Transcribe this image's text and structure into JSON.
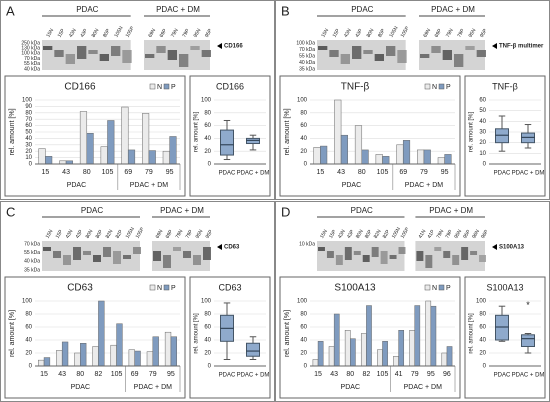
{
  "panels": [
    {
      "letter": "A",
      "groups": [
        "PDAC",
        "PDAC + DM"
      ],
      "lanes": [
        [
          "15N",
          "15P",
          "43N",
          "43P",
          "80N",
          "80P",
          "105N",
          "105P"
        ],
        [
          "69N",
          "69P",
          "79N",
          "79P",
          "95N",
          "95P"
        ]
      ],
      "markers": [
        "250 kDa",
        "130 kDa",
        "100 kDa",
        "70 kDa",
        "55 kDa",
        "40 kDa"
      ],
      "protein": "CD166"
    },
    {
      "letter": "B",
      "groups": [
        "PDAC",
        "PDAC + DM"
      ],
      "lanes": [
        [
          "15N",
          "15P",
          "43N",
          "43P",
          "80N",
          "80P",
          "105N",
          "105P"
        ],
        [
          "69N",
          "69P",
          "79N",
          "79P",
          "95N",
          "95P"
        ]
      ],
      "markers": [
        "100 kDa",
        "70 kDa",
        "55 kDa",
        "40 kDa",
        "35 kDa"
      ],
      "protein": "TNF-β multimer"
    },
    {
      "letter": "C",
      "groups": [
        "PDAC",
        "PDAC + DM"
      ],
      "lanes": [
        [
          "15N",
          "15P",
          "43N",
          "43P",
          "80N",
          "80P",
          "82N",
          "82P",
          "105N",
          "105P"
        ],
        [
          "69N",
          "69P",
          "79N",
          "79P",
          "95N",
          "95P"
        ]
      ],
      "markers": [
        "70 kDa",
        "55 kDa",
        "40 kDa",
        "35 kDa"
      ],
      "protein": "CD63"
    },
    {
      "letter": "D",
      "groups": [
        "PDAC",
        "PDAC + DM"
      ],
      "lanes": [
        [
          "15N",
          "15P",
          "43N",
          "43P",
          "80N",
          "80P",
          "82N",
          "82P",
          "105N",
          "105P"
        ],
        [
          "41N",
          "41P",
          "79N",
          "79P",
          "95N",
          "95P",
          "96N",
          "96P"
        ]
      ],
      "markers": [
        "10 kDa"
      ],
      "protein": "S100A13"
    }
  ],
  "chart_data": [
    {
      "type": "bar",
      "title": "CD166",
      "ylabel": "rel. amount [%]",
      "groups": [
        {
          "label": "PDAC",
          "categories": [
            "15",
            "43",
            "80",
            "105"
          ]
        },
        {
          "label": "PDAC + DM",
          "categories": [
            "69",
            "79",
            "95"
          ]
        }
      ],
      "series": [
        {
          "name": "N",
          "color": "#ebebeb",
          "values": [
            24,
            5,
            82,
            27,
            89,
            79,
            20
          ]
        },
        {
          "name": "P",
          "color": "#7f9bbf",
          "values": [
            12,
            5,
            48,
            68,
            22,
            21,
            43
          ]
        }
      ],
      "ylim": [
        0,
        100
      ],
      "yticks": [
        0,
        10,
        20,
        30,
        40,
        50,
        60,
        70,
        80,
        90,
        100
      ],
      "grid": true
    },
    {
      "type": "box",
      "title": "CD166",
      "ylabel": "rel. amount [%]",
      "categories": [
        "PDAC",
        "PDAC + DM"
      ],
      "color": "#8faacc",
      "boxes": [
        {
          "min": 7,
          "q1": 14,
          "median": 30,
          "q3": 53,
          "max": 68
        },
        {
          "min": 22,
          "q1": 32,
          "median": 37,
          "q3": 40,
          "max": 45
        }
      ],
      "ylim": [
        0,
        100
      ],
      "yticks": [
        0,
        20,
        40,
        60,
        80,
        100
      ],
      "grid": true
    },
    {
      "type": "bar",
      "title": "TNF-β",
      "ylabel": "rel. amount [%]",
      "groups": [
        {
          "label": "PDAC",
          "categories": [
            "15",
            "43",
            "80",
            "105"
          ]
        },
        {
          "label": "PDAC + DM",
          "categories": [
            "69",
            "79",
            "95"
          ]
        }
      ],
      "series": [
        {
          "name": "N",
          "color": "#ebebeb",
          "values": [
            26,
            100,
            60,
            15,
            30,
            22,
            10
          ]
        },
        {
          "name": "P",
          "color": "#7f9bbf",
          "values": [
            28,
            45,
            22,
            12,
            37,
            22,
            15
          ]
        }
      ],
      "ylim": [
        0,
        100
      ],
      "yticks": [
        0,
        20,
        40,
        60,
        80,
        100
      ],
      "grid": true
    },
    {
      "type": "box",
      "title": "TNF-β",
      "ylabel": "rel. amount [%]",
      "categories": [
        "PDAC",
        "PDAC + DM"
      ],
      "color": "#8faacc",
      "boxes": [
        {
          "min": 12,
          "q1": 20,
          "median": 27,
          "q3": 33,
          "max": 45
        },
        {
          "min": 15,
          "q1": 20,
          "median": 25,
          "q3": 29,
          "max": 37
        }
      ],
      "ylim": [
        0,
        60
      ],
      "yticks": [
        0,
        10,
        20,
        30,
        40,
        50,
        60
      ],
      "grid": true
    },
    {
      "type": "bar",
      "title": "CD63",
      "ylabel": "rel. amount [%]",
      "groups": [
        {
          "label": "PDAC",
          "categories": [
            "15",
            "43",
            "80",
            "82",
            "105"
          ]
        },
        {
          "label": "PDAC + DM",
          "categories": [
            "69",
            "79",
            "95"
          ]
        }
      ],
      "series": [
        {
          "name": "N",
          "color": "#ebebeb",
          "values": [
            9,
            24,
            20,
            30,
            32,
            25,
            22,
            52
          ]
        },
        {
          "name": "P",
          "color": "#7f9bbf",
          "values": [
            13,
            37,
            35,
            100,
            65,
            23,
            45,
            45
          ]
        }
      ],
      "ylim": [
        0,
        100
      ],
      "yticks": [
        0,
        20,
        40,
        60,
        80,
        100
      ],
      "grid": true
    },
    {
      "type": "box",
      "title": "CD63",
      "ylabel": "rel. amount [%]",
      "categories": [
        "PDAC",
        "PDAC + DM"
      ],
      "color": "#8faacc",
      "boxes": [
        {
          "min": 10,
          "q1": 38,
          "median": 58,
          "q3": 78,
          "max": 97
        },
        {
          "min": 10,
          "q1": 15,
          "median": 23,
          "q3": 35,
          "max": 45
        }
      ],
      "ylim": [
        0,
        100
      ],
      "yticks": [
        0,
        20,
        40,
        60,
        80,
        100
      ],
      "grid": true
    },
    {
      "type": "bar",
      "title": "S100A13",
      "ylabel": "rel. amount [%]",
      "groups": [
        {
          "label": "PDAC",
          "categories": [
            "15",
            "43",
            "80",
            "82",
            "105"
          ]
        },
        {
          "label": "PDAC + DM",
          "categories": [
            "41",
            "79",
            "95",
            "96"
          ]
        }
      ],
      "series": [
        {
          "name": "N",
          "color": "#ebebeb",
          "values": [
            10,
            30,
            55,
            50,
            25,
            15,
            55,
            100,
            20
          ]
        },
        {
          "name": "P",
          "color": "#7f9bbf",
          "values": [
            38,
            80,
            42,
            93,
            38,
            55,
            93,
            92,
            30
          ]
        }
      ],
      "ylim": [
        0,
        100
      ],
      "yticks": [
        0,
        20,
        40,
        60,
        80,
        100
      ],
      "grid": true
    },
    {
      "type": "box",
      "title": "S100A13",
      "ylabel": "rel. amount [%]",
      "categories": [
        "PDAC",
        "PDAC + DM"
      ],
      "color": "#8faacc",
      "annotation": "*",
      "boxes": [
        {
          "min": 38,
          "q1": 40,
          "median": 60,
          "q3": 78,
          "max": 92
        },
        {
          "min": 20,
          "q1": 30,
          "median": 42,
          "q3": 48,
          "max": 50
        }
      ],
      "ylim": [
        0,
        100
      ],
      "yticks": [
        0,
        20,
        40,
        60,
        80,
        100
      ],
      "grid": true
    }
  ]
}
